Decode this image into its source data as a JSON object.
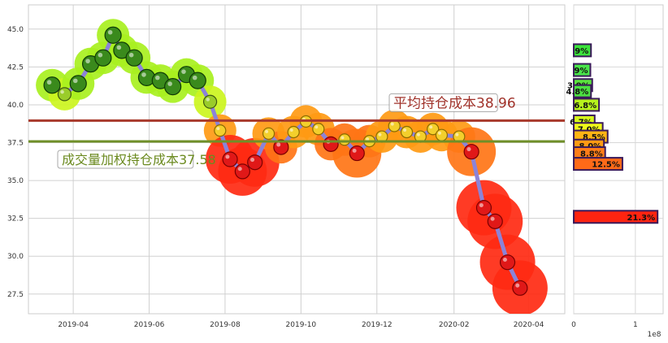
{
  "chart_data": [
    {
      "type": "line",
      "title": "",
      "xlabel": "",
      "ylabel": "",
      "x_ticks": [
        "2019-04",
        "2019-06",
        "2019-08",
        "2019-10",
        "2019-12",
        "2020-02",
        "2020-04"
      ],
      "y_ticks": [
        "27.5",
        "30.0",
        "32.5",
        "35.0",
        "37.5",
        "40.0",
        "42.5",
        "45.0"
      ],
      "ylim": [
        26.2,
        46.6
      ],
      "grid": true,
      "series": [
        {
          "x": [
            "2019-03-15",
            "2019-03-25",
            "2019-04-05",
            "2019-04-15",
            "2019-04-25",
            "2019-05-03",
            "2019-05-10",
            "2019-05-20",
            "2019-05-30",
            "2019-06-10",
            "2019-06-20",
            "2019-07-01",
            "2019-07-10",
            "2019-07-20",
            "2019-07-28",
            "2019-08-05",
            "2019-08-15",
            "2019-08-25",
            "2019-09-05",
            "2019-09-15",
            "2019-09-25",
            "2019-10-05",
            "2019-10-15",
            "2019-10-25",
            "2019-11-05",
            "2019-11-15",
            "2019-11-25",
            "2019-12-05",
            "2019-12-15",
            "2019-12-25",
            "2020-01-05",
            "2020-01-15",
            "2020-01-22",
            "2020-02-05",
            "2020-02-15",
            "2020-02-25",
            "2020-03-05",
            "2020-03-15",
            "2020-03-25"
          ],
          "values": [
            41.3,
            40.7,
            41.4,
            42.7,
            43.1,
            44.6,
            43.6,
            43.1,
            41.8,
            41.6,
            41.2,
            42.0,
            41.6,
            40.2,
            38.3,
            36.4,
            35.6,
            36.2,
            38.1,
            37.2,
            38.2,
            38.9,
            38.4,
            37.4,
            37.7,
            36.8,
            37.6,
            37.9,
            38.6,
            38.2,
            37.9,
            38.4,
            38.0,
            37.9,
            36.9,
            33.2,
            32.3,
            29.6,
            27.9
          ]
        }
      ],
      "hlines": [
        {
          "label": "平均持仓成本38.96",
          "value": 38.96,
          "color": "#a83a2c"
        },
        {
          "label": "成交量加权持仓成本37.58",
          "value": 37.58,
          "color": "#6f8f28"
        }
      ]
    },
    {
      "type": "bar",
      "orientation": "horizontal",
      "x_ticks": [
        "0",
        "1"
      ],
      "axis_multiplier": "1e8",
      "xlim": [
        0,
        1.45
      ],
      "bins": [
        {
          "price": 43.6,
          "volume": 0.28,
          "label": "9%",
          "color": "#3be33b"
        },
        {
          "price": 42.3,
          "volume": 0.27,
          "label": "9%",
          "color": "#49e44a"
        },
        {
          "price": 41.3,
          "volume": 0.3,
          "label": "3.9%",
          "color": "#5be43e"
        },
        {
          "price": 40.9,
          "volume": 0.28,
          "label": "4.8%",
          "color": "#4ce041"
        },
        {
          "price": 40.0,
          "volume": 0.41,
          "label": "6.8%",
          "color": "#b6f21c"
        },
        {
          "price": 38.9,
          "volume": 0.34,
          "label": "6.7%",
          "color": "#d5f91a"
        },
        {
          "price": 38.4,
          "volume": 0.47,
          "label": "7.0%",
          "color": "#f0fb1a"
        },
        {
          "price": 37.9,
          "volume": 0.55,
          "label": "8.5%",
          "color": "#ffb414"
        },
        {
          "price": 37.3,
          "volume": 0.49,
          "label": "8.0%",
          "color": "#ff9a14"
        },
        {
          "price": 36.8,
          "volume": 0.51,
          "label": "8.8%",
          "color": "#ff7d18"
        },
        {
          "price": 36.1,
          "volume": 0.79,
          "label": "12.5%",
          "color": "#ff6a18"
        },
        {
          "price": 32.6,
          "volume": 1.36,
          "label": "21.3%",
          "color": "#ff2410"
        }
      ]
    }
  ]
}
